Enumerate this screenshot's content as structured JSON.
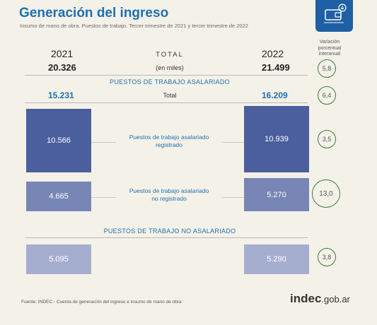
{
  "header": {
    "title": "Generación del ingreso",
    "subtitle": "Insumo de mano de obra. Puestos de trabajo. Tercer trimestre de 2021 y tercer trimestre de 2022"
  },
  "variation_header": "Variación porcentual interanual",
  "years": {
    "left": "2021",
    "right": "2022"
  },
  "total": {
    "label": "TOTAL",
    "unit_label": "(en miles)",
    "value_2021": "20.326",
    "value_2022": "21.499",
    "variation": "5,8"
  },
  "asalariado": {
    "section_label": "PUESTOS DE TRABAJO ASALARIADO",
    "total_label": "Total",
    "total_2021": "15.231",
    "total_2022": "16.209",
    "total_variation": "6,4",
    "registrado": {
      "label_line1": "Puestos de trabajo asalariado",
      "label_line2": "registrado",
      "value_2021": "10.566",
      "value_2022": "10.939",
      "variation": "3,5"
    },
    "no_registrado": {
      "label_line1": "Puestos de trabajo asalariado",
      "label_line2": "no registrado",
      "value_2021": "4.665",
      "value_2022": "5.270",
      "variation": "13,0"
    }
  },
  "no_asalariado": {
    "section_label": "PUESTOS DE TRABAJO NO ASALARIADO",
    "value_2021": "5.095",
    "value_2022": "5.290",
    "variation": "3,8"
  },
  "footer": {
    "source": "Fuente: INDEC - Cuenta de generación del ingreso e insumo de mano de obra",
    "brand_main": "indec",
    "brand_suffix": ".gob.ar"
  },
  "colors": {
    "title_blue": "#1f6fb0",
    "box_dark": "#4b5f9e",
    "box_mid": "#7886b5",
    "box_light": "#a6aed0",
    "circle_green": "#3d7a3f",
    "background": "#f4f2e8"
  },
  "icons": {
    "logo": "wallet-icon"
  }
}
